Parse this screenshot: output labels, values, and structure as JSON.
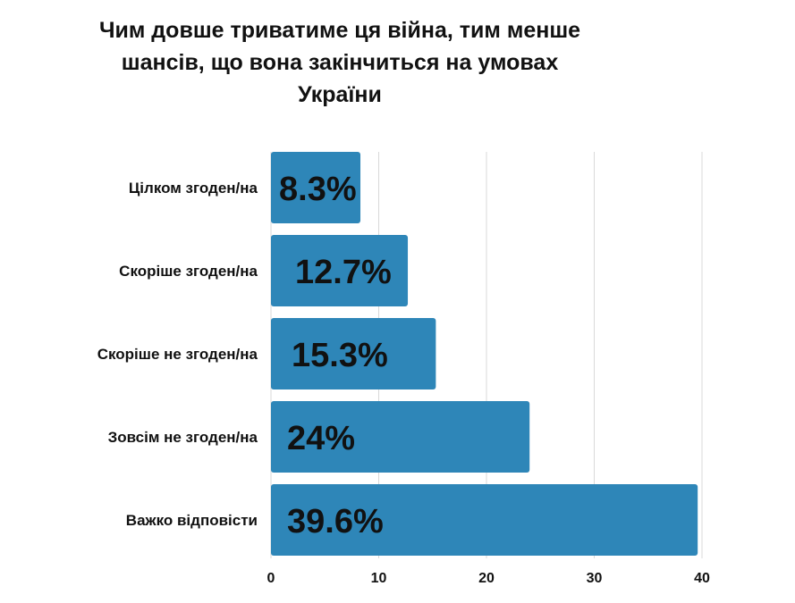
{
  "chart_data": {
    "type": "bar",
    "orientation": "horizontal",
    "title": "Чим довше триватиме ця війна, тим менше шансів, що вона закінчиться на умовах України",
    "categories": [
      "Цілком згоден/на",
      "Скоріше згоден/на",
      "Скоріше не згоден/на",
      "Зовсім не згоден/на",
      "Важко відповісти"
    ],
    "values": [
      8.3,
      12.7,
      15.3,
      24,
      39.6
    ],
    "data_labels": [
      "8.3%",
      "12.7%",
      "15.3%",
      "24%",
      "39.6%"
    ],
    "xlim": [
      0,
      40
    ],
    "xticks": [
      0,
      10,
      20,
      30,
      40
    ],
    "xlabel": "",
    "ylabel": "",
    "grid": "vertical",
    "legend": "none",
    "bar_color": "#2e86b8",
    "grid_color": "#d9d9d9",
    "label_color": "#111111"
  }
}
